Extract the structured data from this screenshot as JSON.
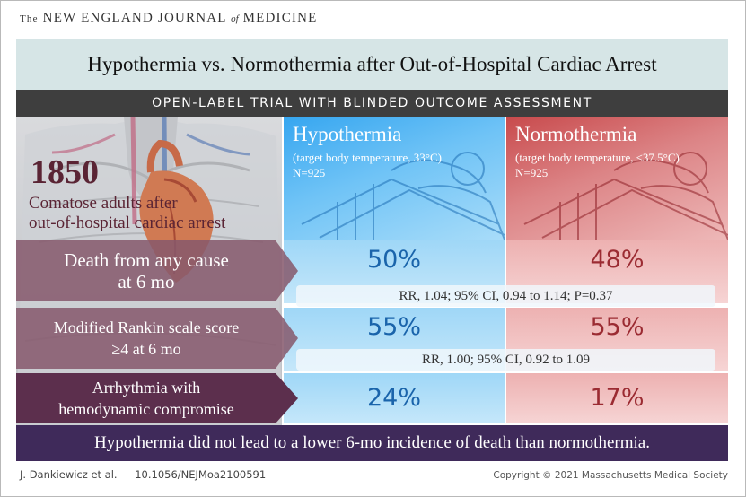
{
  "journal": {
    "the": "The",
    "name_part1": "NEW ENGLAND JOURNAL",
    "of": "of",
    "name_part2": "MEDICINE"
  },
  "title": "Hypothermia vs. Normothermia after Out-of-Hospital Cardiac Arrest",
  "subtitle": "OPEN-LABEL TRIAL WITH BLINDED OUTCOME ASSESSMENT",
  "population": {
    "count": "1850",
    "label_line1": "Comatose adults after",
    "label_line2": "out-of-hospital cardiac arrest"
  },
  "groups": [
    {
      "name": "Hypothermia",
      "target": "(target body temperature, 33°C)",
      "n": "N=925",
      "color": "#3aa8f0"
    },
    {
      "name": "Normothermia",
      "target": "(target body temperature, ≤37.5°C)",
      "n": "N=925",
      "color": "#c84a4c"
    }
  ],
  "outcomes": [
    {
      "label_line1": "Death from any cause",
      "label_line2": "at 6 mo",
      "hypothermia": "50%",
      "normothermia": "48%",
      "stats": "RR, 1.04; 95% CI, 0.94 to 1.14; P=0.37"
    },
    {
      "label_line1": "Modified Rankin scale score",
      "label_line2": "≥4 at 6 mo",
      "hypothermia": "55%",
      "normothermia": "55%",
      "stats": "RR, 1.00; 95% CI, 0.92 to 1.09"
    },
    {
      "label_line1": "Arrhythmia with",
      "label_line2": "hemodynamic compromise",
      "hypothermia": "24%",
      "normothermia": "17%",
      "stats": ""
    }
  ],
  "conclusion": "Hypothermia did not lead to a lower 6-mo incidence of death than normothermia.",
  "footer": {
    "authors": "J. Dankiewicz et al.",
    "doi": "10.1056/NEJMoa2100591",
    "copyright": "Copyright © 2021 Massachusetts Medical Society"
  },
  "colors": {
    "title_band": "#d6e5e6",
    "subhead_band": "#3e3e3e",
    "conclusion_band": "#3f2a5a",
    "hypothermia_value": "#1a64ab",
    "normothermia_value": "#9b2b32"
  }
}
